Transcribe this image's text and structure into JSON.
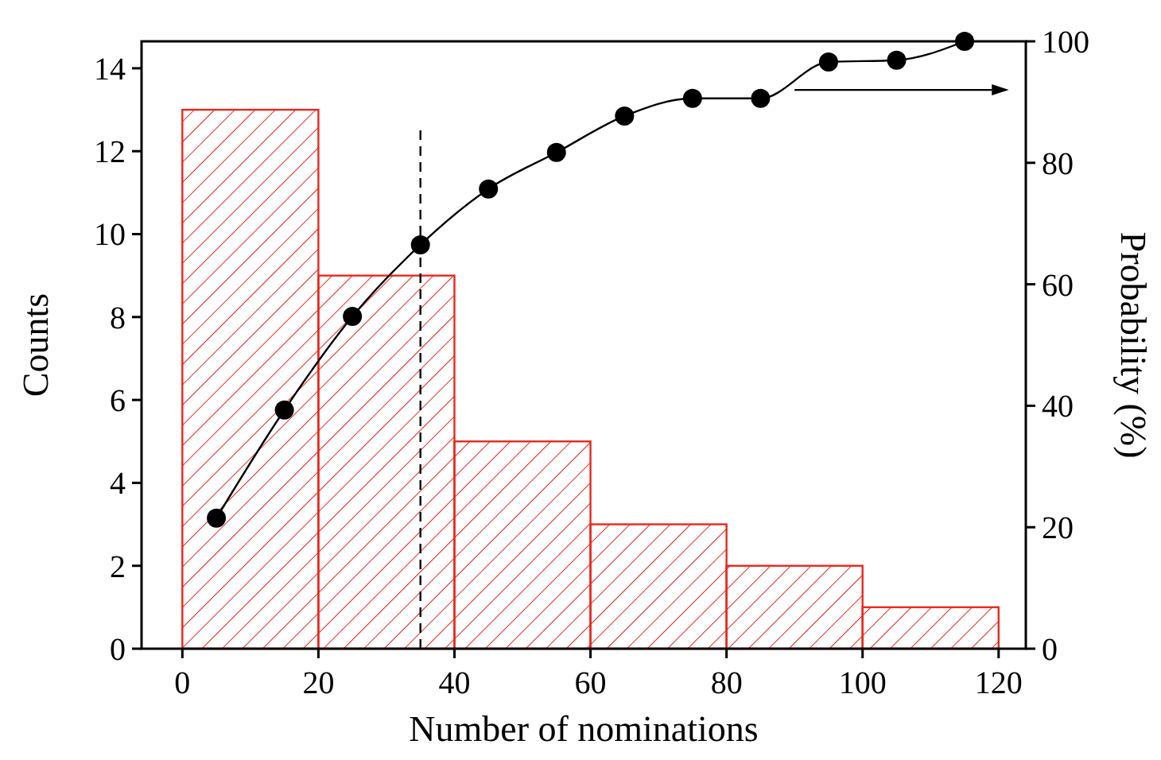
{
  "chart_data": {
    "type": "histogram",
    "xlabel": "Number of nominations",
    "ylabel": "Counts",
    "y2label": "Probability (%)",
    "bins": [
      0,
      20,
      40,
      60,
      80,
      100,
      120
    ],
    "values": [
      13,
      9,
      5,
      3,
      2,
      1
    ],
    "color": "#e8281e",
    "xlim": [
      -6,
      124
    ],
    "xticks": [
      0,
      20,
      40,
      60,
      80,
      100,
      120
    ],
    "ylim": [
      0,
      14.65
    ],
    "yticks": [
      0,
      2,
      4,
      6,
      8,
      10,
      12,
      14
    ],
    "y2lim": [
      0,
      100
    ],
    "y2ticks": [
      0,
      20,
      40,
      60,
      80,
      100
    ],
    "series": [
      {
        "type": "line",
        "axis": "y2",
        "color": "#000000",
        "marker": "circle",
        "x": [
          5,
          15,
          25,
          35,
          45,
          55,
          65,
          75,
          85,
          95,
          105,
          115
        ],
        "values": [
          21.5,
          39.3,
          54.7,
          66.5,
          75.7,
          81.7,
          87.7,
          90.6,
          90.6,
          96.6,
          96.9,
          100
        ]
      }
    ],
    "ref_lines": [
      {
        "axis": "x",
        "value": 35,
        "line_style": "dashed",
        "color": "#000000"
      }
    ],
    "grid": false
  }
}
